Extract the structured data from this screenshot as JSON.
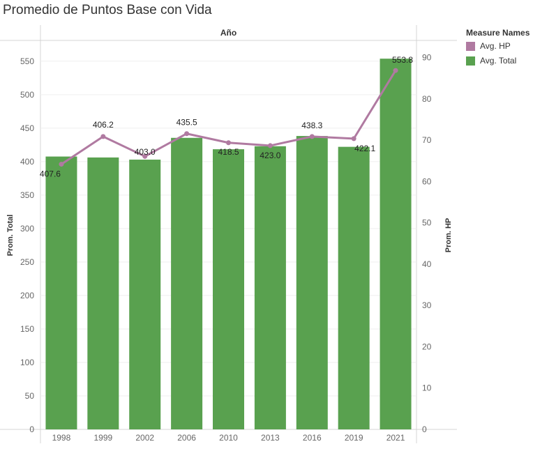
{
  "title": "Promedio de Puntos Base con Vida",
  "legend": {
    "title": "Measure Names",
    "items": [
      {
        "label": "Avg. HP",
        "color": "#b07aa1"
      },
      {
        "label": "Avg. Total",
        "color": "#59a14f"
      }
    ]
  },
  "chart_data": {
    "type": "bar",
    "header": "Año",
    "categories": [
      "1998",
      "1999",
      "2002",
      "2006",
      "2010",
      "2013",
      "2016",
      "2019",
      "2021"
    ],
    "series": [
      {
        "name": "Avg. Total",
        "type": "bar",
        "axis": "left",
        "color": "#59a14f",
        "values": [
          407.6,
          406.2,
          403.0,
          435.5,
          418.5,
          423.0,
          438.3,
          422.1,
          553.8
        ]
      },
      {
        "name": "Avg. HP",
        "type": "line",
        "axis": "right",
        "color": "#b07aa1",
        "values": [
          64.2,
          70.9,
          66.1,
          71.6,
          69.4,
          68.7,
          70.9,
          70.4,
          86.9
        ]
      }
    ],
    "data_labels": [
      "407.6",
      "406.2",
      "403.0",
      "435.5",
      "418.5",
      "423.0",
      "438.3",
      "422.1",
      "553.8"
    ],
    "ylabel": "Prom. Total",
    "ylim": [
      0,
      580
    ],
    "yticks": [
      0,
      50,
      100,
      150,
      200,
      250,
      300,
      350,
      400,
      450,
      500,
      550
    ],
    "y2label": "Prom. HP",
    "y2lim": [
      0,
      94
    ],
    "y2ticks": [
      0,
      10,
      20,
      30,
      40,
      50,
      60,
      70,
      80,
      90
    ],
    "grid": true
  }
}
